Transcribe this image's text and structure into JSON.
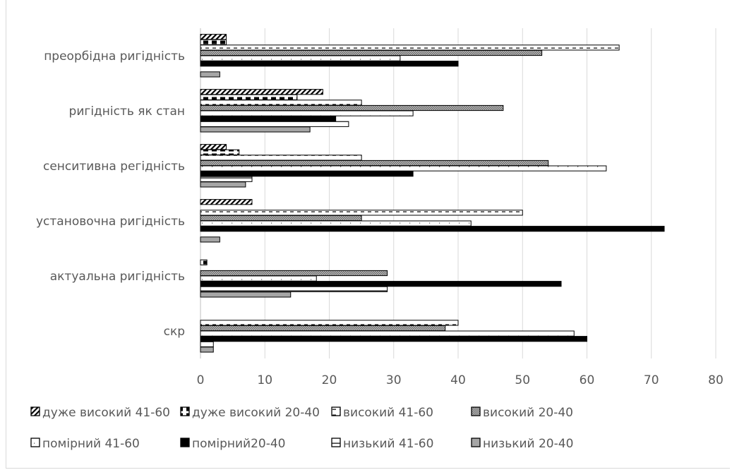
{
  "chart_data": {
    "type": "bar",
    "orientation": "horizontal",
    "title": "",
    "xlabel": "",
    "ylabel": "",
    "xlim": [
      0,
      80
    ],
    "xticks": [
      0,
      10,
      20,
      30,
      40,
      50,
      60,
      70,
      80
    ],
    "grid": "vertical",
    "legend_position": "bottom",
    "categories": [
      "преорбідна ригідність",
      "ригідність як стан",
      "сенситивна регідність",
      "установочна ригідність",
      "актуальна ригідність",
      "скр"
    ],
    "series": [
      {
        "name": "дуже високий 41-60",
        "pattern": "diag-hatch",
        "color": "#000000",
        "values": [
          4,
          19,
          4,
          8,
          0,
          0
        ]
      },
      {
        "name": "дуже високий 20-40",
        "pattern": "dashes",
        "color": "#000000",
        "values": [
          4,
          15,
          6,
          0,
          1,
          0
        ]
      },
      {
        "name": "високий 41-60",
        "pattern": "dash-line",
        "color": "#000000",
        "values": [
          65,
          25,
          25,
          50,
          0,
          40
        ]
      },
      {
        "name": "високий 20-40",
        "pattern": "fine-grid",
        "color": "#7f7f7f",
        "values": [
          53,
          47,
          54,
          25,
          29,
          38
        ]
      },
      {
        "name": "помірний 41-60",
        "pattern": "dotted-line",
        "color": "#ffffff",
        "values": [
          31,
          33,
          63,
          42,
          18,
          58
        ]
      },
      {
        "name": "помірний20-40",
        "pattern": "solid",
        "color": "#000000",
        "values": [
          40,
          21,
          33,
          72,
          56,
          60
        ]
      },
      {
        "name": "низький 41-60",
        "pattern": "horizontal-line",
        "color": "#ffffff",
        "values": [
          0,
          23,
          8,
          0,
          29,
          2
        ]
      },
      {
        "name": "низький 20-40",
        "pattern": "solid",
        "color": "#a6a6a6",
        "values": [
          3,
          17,
          7,
          3,
          14,
          2
        ]
      }
    ]
  }
}
